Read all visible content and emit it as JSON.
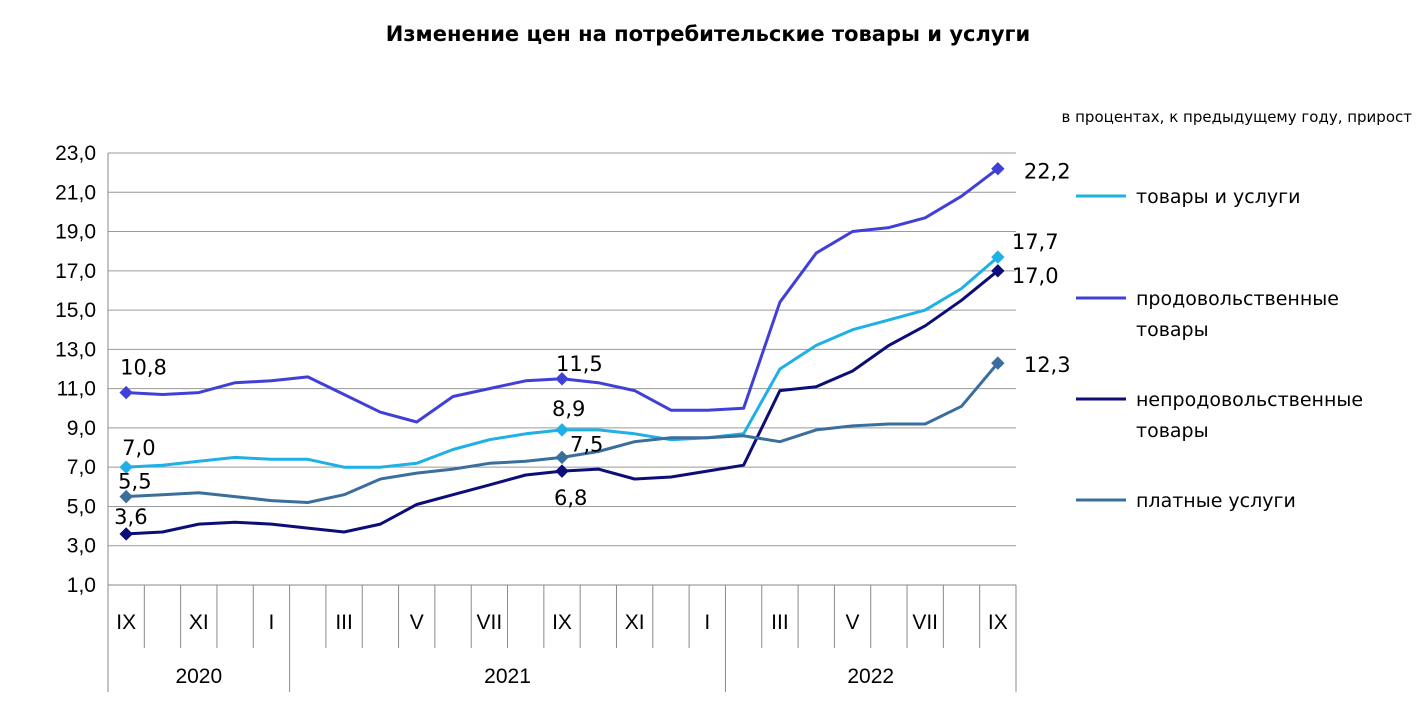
{
  "chart_data": {
    "type": "line",
    "title": "Изменение цен на потребительские товары и услуги",
    "units_note": "в процентах, к предыдущему году, прирост",
    "ylim": [
      1.0,
      23.0
    ],
    "y_ticks": [
      "1,0",
      "3,0",
      "5,0",
      "7,0",
      "9,0",
      "11,0",
      "13,0",
      "15,0",
      "17,0",
      "19,0",
      "21,0",
      "23,0"
    ],
    "x_tick_labels": [
      "IX",
      "",
      "XI",
      "",
      "I",
      "",
      "III",
      "",
      "V",
      "",
      "VII",
      "",
      "IX",
      "",
      "XI",
      "",
      "I",
      "",
      "III",
      "",
      "V",
      "",
      "VII",
      "",
      "IX"
    ],
    "years": [
      {
        "label": "2020",
        "start": 0,
        "end": 4
      },
      {
        "label": "2021",
        "start": 5,
        "end": 16
      },
      {
        "label": "2022",
        "start": 17,
        "end": 24
      }
    ],
    "grid": true,
    "legend_position": "right",
    "series": [
      {
        "name": "товары и услуги",
        "color": "#1fb0e6",
        "values": [
          7.0,
          7.1,
          7.3,
          7.5,
          7.4,
          7.4,
          7.0,
          7.0,
          7.2,
          7.9,
          8.4,
          8.7,
          8.9,
          8.9,
          8.7,
          8.4,
          8.5,
          8.7,
          12.0,
          13.2,
          14.0,
          14.5,
          15.0,
          16.1,
          17.7
        ],
        "labels": [
          {
            "i": 0,
            "text": "7,0"
          },
          {
            "i": 12,
            "text": "8,9"
          },
          {
            "i": 24,
            "text": "17,7"
          }
        ]
      },
      {
        "name": "продовольственные товары",
        "color": "#4040d8",
        "values": [
          10.8,
          10.7,
          10.8,
          11.3,
          11.4,
          11.6,
          10.7,
          9.8,
          9.3,
          10.6,
          11.0,
          11.4,
          11.5,
          11.3,
          10.9,
          9.9,
          9.9,
          10.0,
          15.4,
          17.9,
          19.0,
          19.2,
          19.7,
          20.8,
          22.2
        ],
        "labels": [
          {
            "i": 0,
            "text": "10,8"
          },
          {
            "i": 12,
            "text": "11,5"
          },
          {
            "i": 24,
            "text": "22,2"
          }
        ]
      },
      {
        "name": "непродовольственные товары",
        "color": "#0d0d78",
        "values": [
          3.6,
          3.7,
          4.1,
          4.2,
          4.1,
          3.9,
          3.7,
          4.1,
          5.1,
          5.6,
          6.1,
          6.6,
          6.8,
          6.9,
          6.4,
          6.5,
          6.8,
          7.1,
          10.9,
          11.1,
          11.9,
          13.2,
          14.2,
          15.5,
          17.0
        ],
        "labels": [
          {
            "i": 0,
            "text": "3,6"
          },
          {
            "i": 12,
            "text": "6,8"
          },
          {
            "i": 24,
            "text": "17,0"
          }
        ]
      },
      {
        "name": "платные услуги",
        "color": "#3a6e9c",
        "values": [
          5.5,
          5.6,
          5.7,
          5.5,
          5.3,
          5.2,
          5.6,
          6.4,
          6.7,
          6.9,
          7.2,
          7.3,
          7.5,
          7.8,
          8.3,
          8.5,
          8.5,
          8.6,
          8.3,
          8.9,
          9.1,
          9.2,
          9.2,
          10.1,
          12.3
        ],
        "labels": [
          {
            "i": 0,
            "text": "5,5"
          },
          {
            "i": 12,
            "text": "7,5"
          },
          {
            "i": 24,
            "text": "12,3"
          }
        ]
      }
    ]
  }
}
